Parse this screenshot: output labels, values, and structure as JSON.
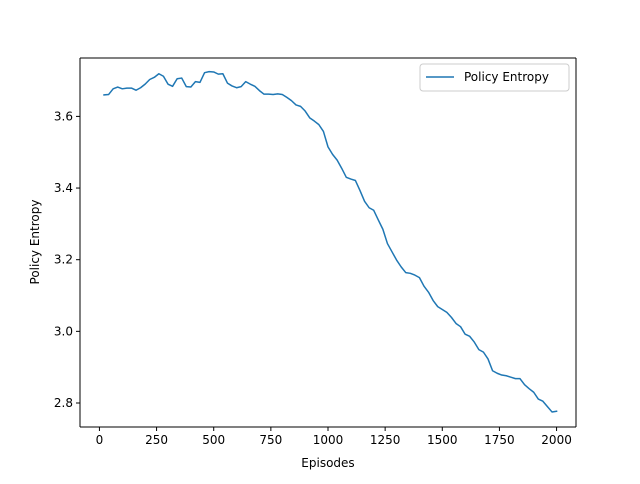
{
  "chart_data": {
    "type": "line",
    "title": "",
    "xlabel": "Episodes",
    "ylabel": "Policy Entropy",
    "xlim": [
      -85,
      2085
    ],
    "ylim": [
      2.733,
      3.763
    ],
    "xticks": [
      0,
      250,
      500,
      750,
      1000,
      1250,
      1500,
      1750,
      2000
    ],
    "xtick_labels": [
      "0",
      "250",
      "500",
      "750",
      "1000",
      "1250",
      "1500",
      "1750",
      "2000"
    ],
    "yticks": [
      2.8,
      3.0,
      3.2,
      3.4,
      3.6
    ],
    "ytick_labels": [
      "2.8",
      "3.0",
      "3.2",
      "3.4",
      "3.6"
    ],
    "grid": false,
    "legend_position": "top-right",
    "series": [
      {
        "name": "Policy Entropy",
        "color": "#1f77b4",
        "x": [
          20,
          40,
          60,
          80,
          100,
          120,
          140,
          160,
          180,
          200,
          220,
          240,
          260,
          280,
          300,
          320,
          340,
          360,
          380,
          400,
          420,
          440,
          460,
          480,
          500,
          520,
          540,
          560,
          580,
          600,
          620,
          640,
          660,
          680,
          700,
          720,
          740,
          760,
          780,
          800,
          820,
          840,
          860,
          880,
          900,
          920,
          940,
          960,
          980,
          1000,
          1020,
          1040,
          1060,
          1080,
          1100,
          1120,
          1140,
          1160,
          1180,
          1200,
          1220,
          1240,
          1260,
          1280,
          1300,
          1320,
          1340,
          1360,
          1380,
          1400,
          1420,
          1440,
          1460,
          1480,
          1500,
          1520,
          1540,
          1560,
          1580,
          1600,
          1620,
          1640,
          1660,
          1680,
          1700,
          1720,
          1740,
          1760,
          1780,
          1800,
          1820,
          1840,
          1860,
          1880,
          1900,
          1920,
          1940,
          1960,
          1980,
          2000
        ],
        "y": [
          3.66,
          3.661,
          3.677,
          3.682,
          3.677,
          3.679,
          3.679,
          3.673,
          3.68,
          3.69,
          3.703,
          3.709,
          3.719,
          3.712,
          3.69,
          3.684,
          3.705,
          3.707,
          3.683,
          3.682,
          3.697,
          3.695,
          3.722,
          3.725,
          3.724,
          3.718,
          3.719,
          3.693,
          3.685,
          3.68,
          3.683,
          3.697,
          3.69,
          3.684,
          3.672,
          3.662,
          3.662,
          3.661,
          3.663,
          3.661,
          3.653,
          3.644,
          3.632,
          3.628,
          3.615,
          3.596,
          3.587,
          3.577,
          3.558,
          3.515,
          3.494,
          3.478,
          3.455,
          3.43,
          3.425,
          3.421,
          3.393,
          3.363,
          3.345,
          3.338,
          3.311,
          3.285,
          3.245,
          3.222,
          3.199,
          3.18,
          3.164,
          3.162,
          3.157,
          3.15,
          3.126,
          3.109,
          3.086,
          3.069,
          3.061,
          3.053,
          3.039,
          3.022,
          3.013,
          2.992,
          2.986,
          2.97,
          2.949,
          2.942,
          2.923,
          2.89,
          2.883,
          2.878,
          2.876,
          2.872,
          2.868,
          2.868,
          2.851,
          2.84,
          2.83,
          2.811,
          2.805,
          2.79,
          2.775,
          2.777
        ]
      }
    ]
  }
}
